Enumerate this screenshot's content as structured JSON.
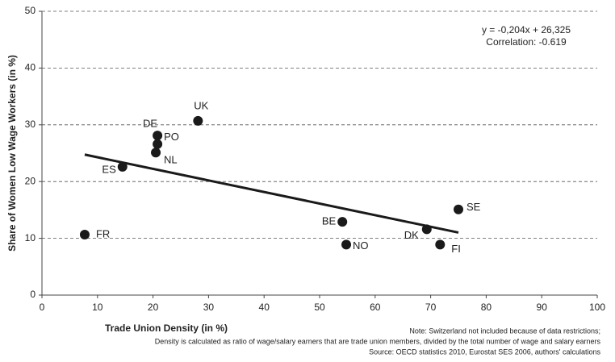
{
  "chart_data": {
    "type": "scatter",
    "xlabel": "Trade Union Density (in %)",
    "ylabel": "Share of Women Low Wage Workers (in %)",
    "annotations": [
      "y = -0,204x + 26,325",
      "Correlation: -0.619"
    ],
    "notes": [
      "Note: Switzerland not included because of data restrictions;",
      "Density is calculated as ratio of  wage/salary earners that are trade union members, divided by the total number of wage and salary earners",
      "Source: OECD statistics 2010, Eurostat SES 2006, authors' calculations"
    ],
    "labels": [
      "FR",
      "ES",
      "NL",
      "PO",
      "DE",
      "UK",
      "BE",
      "NO",
      "DK",
      "FI",
      "SE"
    ],
    "x": [
      7.7,
      14.5,
      20.5,
      20.8,
      20.8,
      28.1,
      54.1,
      54.8,
      69.3,
      71.7,
      75.0
    ],
    "y": [
      10.65,
      22.6,
      25.1,
      26.6,
      28.1,
      30.7,
      12.9,
      8.9,
      11.6,
      8.9,
      15.1
    ],
    "color": "#1a1a1a",
    "trendline": {
      "x": [
        7.7,
        75.0
      ],
      "y": [
        24.75,
        11.02
      ],
      "color": "#1a1a1a"
    },
    "xlim": [
      0,
      100
    ],
    "xticks": [
      0,
      10,
      20,
      30,
      40,
      50,
      60,
      70,
      80,
      90,
      100
    ],
    "ylim": [
      0,
      50
    ],
    "yticks": [
      0,
      10,
      20,
      30,
      40,
      50
    ],
    "grid": true
  }
}
